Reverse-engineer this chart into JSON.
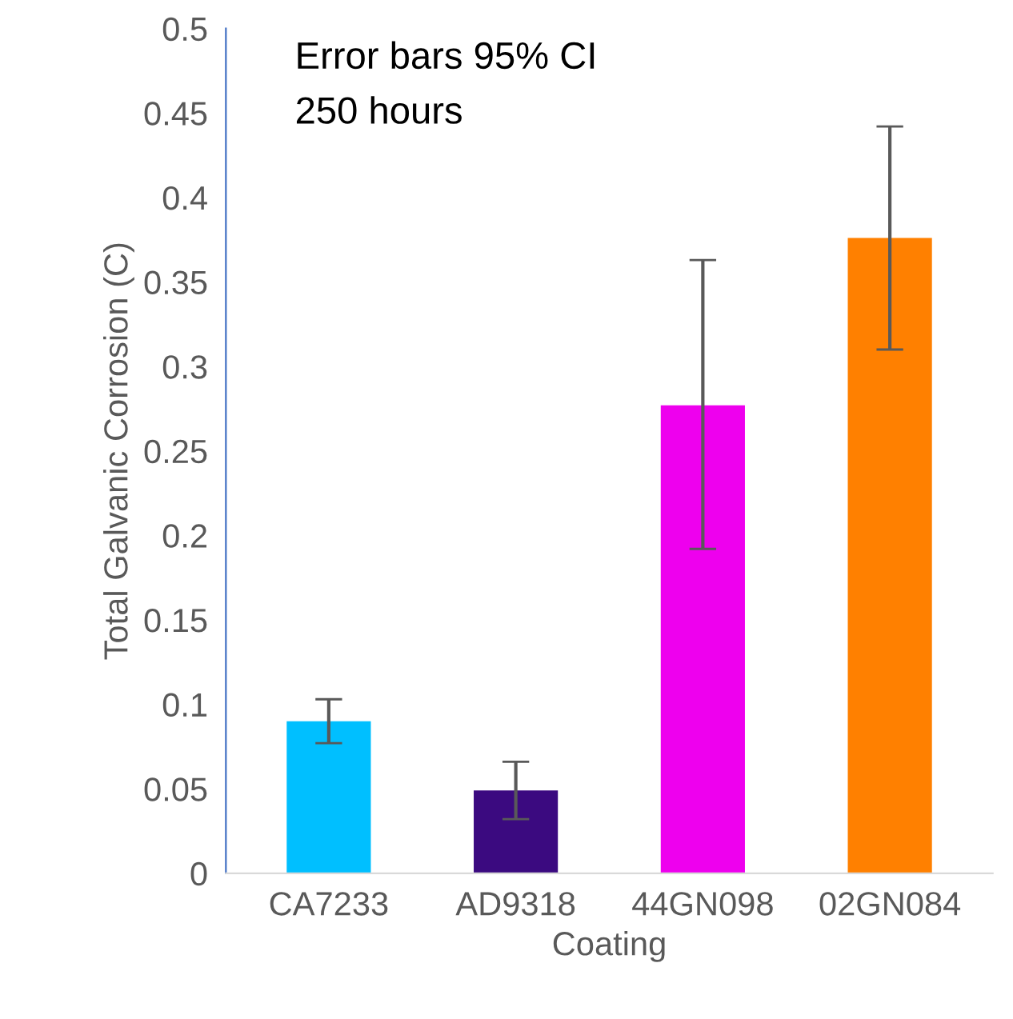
{
  "chart_data": {
    "type": "bar",
    "xlabel": "Coating",
    "ylabel": "Total Galvanic Corrosion (C)",
    "categories": [
      "CA7233",
      "AD9318",
      "44GN098",
      "02GN084"
    ],
    "values": [
      0.09,
      0.049,
      0.277,
      0.376
    ],
    "colors": [
      "#00bfff",
      "#3b0a80",
      "#ee00ee",
      "#ff8000"
    ],
    "errors": [
      [
        0.077,
        0.103
      ],
      [
        0.032,
        0.066
      ],
      [
        0.192,
        0.363
      ],
      [
        0.31,
        0.442
      ]
    ],
    "ylim": [
      0,
      0.5
    ],
    "yticks": [
      0,
      0.05,
      0.1,
      0.15,
      0.2,
      0.25,
      0.3,
      0.35,
      0.4,
      0.45,
      0.5
    ],
    "annotations": [
      "Error bars 95% CI",
      "250 hours"
    ],
    "grid": false,
    "legend": false
  }
}
